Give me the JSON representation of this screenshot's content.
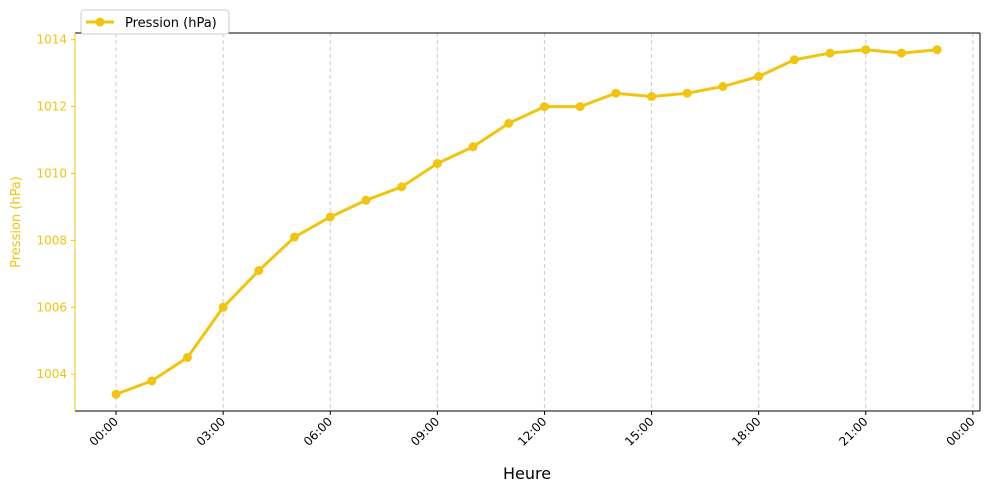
{
  "chart_data": {
    "type": "line",
    "title": "",
    "xlabel": "Heure",
    "ylabel": "Pression (hPa)",
    "x": [
      "00:00",
      "01:00",
      "02:00",
      "03:00",
      "04:00",
      "05:00",
      "06:00",
      "07:00",
      "08:00",
      "09:00",
      "10:00",
      "11:00",
      "12:00",
      "13:00",
      "14:00",
      "15:00",
      "16:00",
      "17:00",
      "18:00",
      "19:00",
      "20:00",
      "21:00",
      "22:00",
      "23:00"
    ],
    "series": [
      {
        "name": "Pression (hPa)",
        "values": [
          1003.4,
          1003.8,
          1004.5,
          1006.0,
          1007.1,
          1008.1,
          1008.7,
          1009.2,
          1009.6,
          1010.3,
          1010.8,
          1011.5,
          1012.0,
          1012.0,
          1012.4,
          1012.3,
          1012.4,
          1012.6,
          1012.9,
          1013.4,
          1013.6,
          1013.7,
          1013.6,
          1013.7
        ],
        "color": "#f1c40f"
      }
    ],
    "xticks": [
      "00:00",
      "03:00",
      "06:00",
      "09:00",
      "12:00",
      "15:00",
      "18:00",
      "21:00",
      "00:00"
    ],
    "yticks": [
      1004,
      1006,
      1008,
      1010,
      1012,
      1014
    ],
    "ylim": [
      1002.9,
      1014.2
    ],
    "xlim_hours": [
      -1.15,
      24.2
    ],
    "grid": "vertical dashed",
    "legend": "top-left",
    "accent_color": "#f1c40f"
  }
}
